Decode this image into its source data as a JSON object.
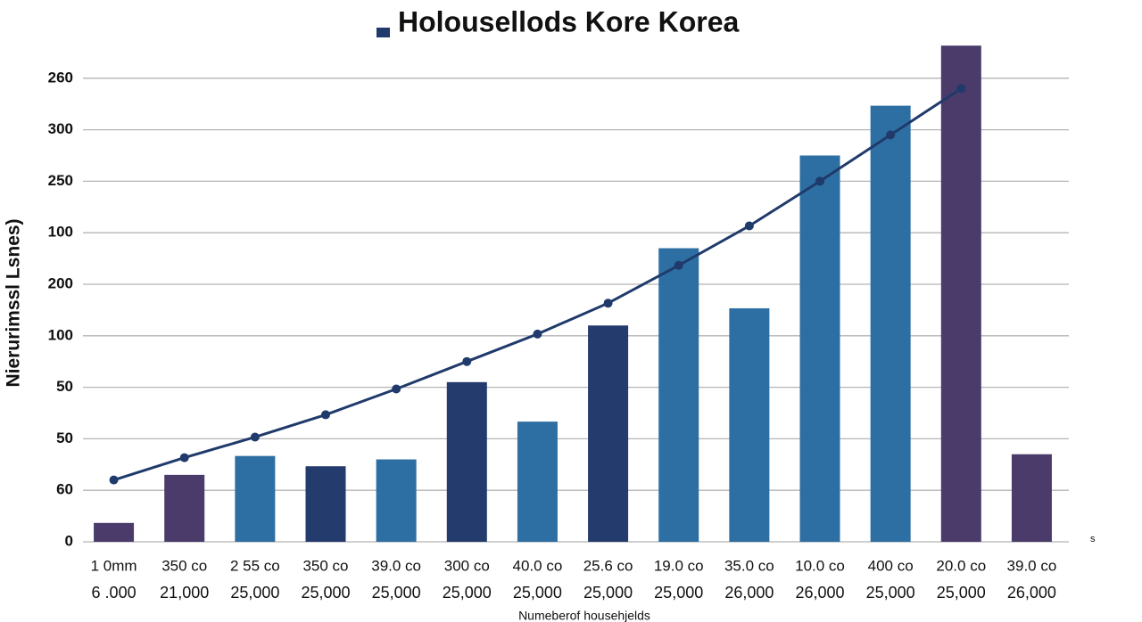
{
  "chart_data": {
    "type": "bar",
    "title": "Holousellods Kore Korea",
    "y_label": "Nierurimssl Lsnes)",
    "x_label": "Numeberof househjelds",
    "note": "s",
    "categories": [
      [
        "1 0mm",
        "6 .000"
      ],
      [
        "350 co",
        "21,000"
      ],
      [
        "2 55 co",
        "25,000"
      ],
      [
        "350 co",
        "25,000"
      ],
      [
        "39.0 co",
        "25,000"
      ],
      [
        "300 co",
        "25,000"
      ],
      [
        "40.0 co",
        "25,000"
      ],
      [
        "25.6 co",
        "25,000"
      ],
      [
        "19.0 co",
        "25,000"
      ],
      [
        "35.0 co",
        "26,000"
      ],
      [
        "10.0 co",
        "26,000"
      ],
      [
        "400 co",
        "25,000"
      ],
      [
        "20.0 co",
        "25,000"
      ],
      [
        "39.0 co",
        "26,000"
      ]
    ],
    "values": [
      11,
      39,
      50,
      44,
      48,
      93,
      70,
      126,
      171,
      136,
      225,
      254,
      289,
      51
    ],
    "colors": [
      "#4a3b6b",
      "#4a3b6b",
      "#2e6fa3",
      "#243b6e",
      "#2e6fa3",
      "#243b6e",
      "#2e6fa3",
      "#243b6e",
      "#2e6fa3",
      "#2e6fa3",
      "#2e6fa3",
      "#2e6fa3",
      "#4a3b6b",
      "#4a3b6b"
    ],
    "line": {
      "color": "#1f3a6b",
      "values": [
        36,
        49,
        61,
        74,
        89,
        105,
        121,
        139,
        161,
        184,
        210,
        237,
        264,
        null
      ]
    },
    "ylim": [
      0,
      300
    ],
    "yticks": [
      0,
      {
        "value": 30,
        "label": "60"
      },
      {
        "value": 60,
        "label": "50"
      },
      {
        "value": 90,
        "label": "50"
      },
      {
        "value": 120,
        "label": "100"
      },
      {
        "value": 150,
        "label": "200"
      },
      {
        "value": 180,
        "label": "100"
      },
      {
        "value": 210,
        "label": "250"
      },
      {
        "value": 240,
        "label": "300"
      },
      {
        "value": 270,
        "label": "260"
      }
    ],
    "grid": true
  }
}
